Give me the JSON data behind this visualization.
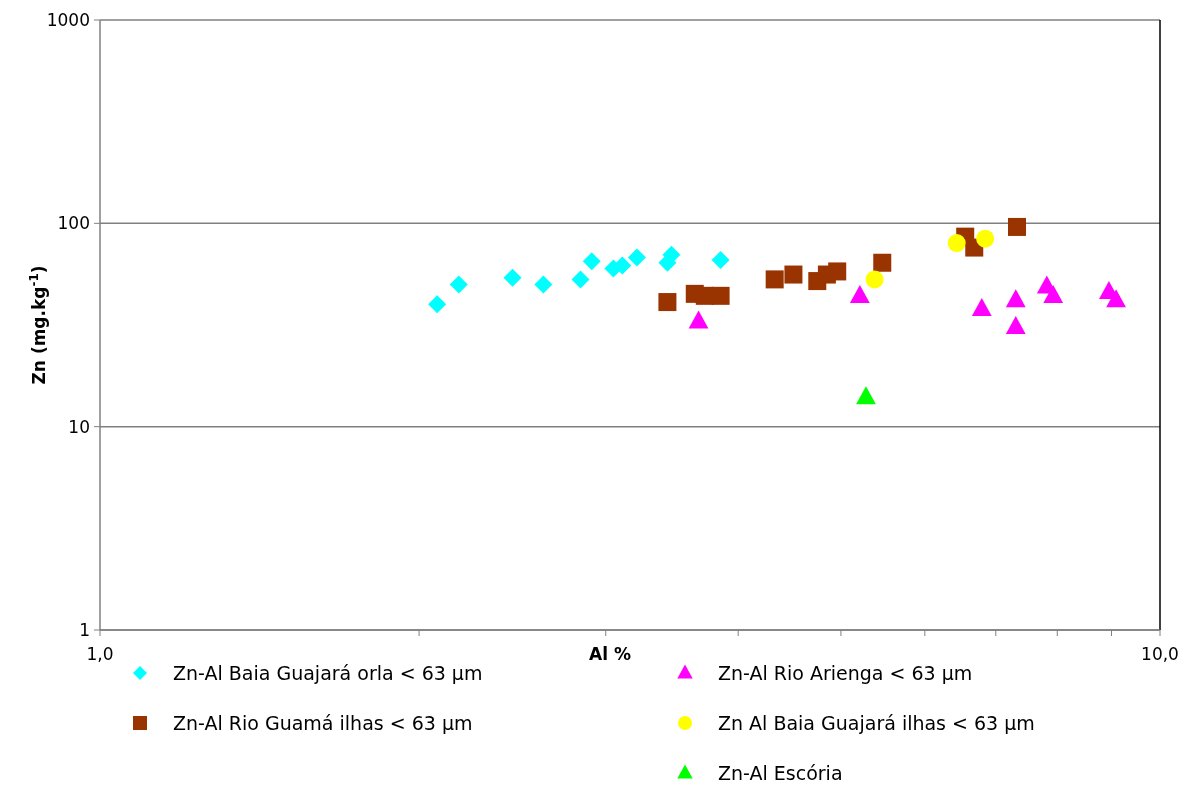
{
  "chart_data": {
    "type": "scatter",
    "xlabel": "Al %",
    "ylabel": "Zn (mg.kg$^{-1}$)",
    "log": "xy",
    "grid": "y",
    "legend": "bottom",
    "xlim": [
      1,
      10
    ],
    "xticks": [
      {
        "value": 1,
        "label": "1,0"
      },
      {
        "value": 2,
        "label": null
      },
      {
        "value": 3,
        "label": null
      },
      {
        "value": 4,
        "label": null
      },
      {
        "value": 5,
        "label": null
      },
      {
        "value": 6,
        "label": null
      },
      {
        "value": 7,
        "label": null
      },
      {
        "value": 8,
        "label": null
      },
      {
        "value": 9,
        "label": null
      },
      {
        "value": 10,
        "label": "10,0"
      }
    ],
    "ylim": [
      1,
      1000
    ],
    "yticks": [
      1,
      10,
      100,
      1000
    ],
    "series": [
      {
        "name": "Zn-Al Baia Guajará orla < 63 µm",
        "color": "#00ffff",
        "marker": "diamond",
        "x": [
          2.08,
          2.18,
          2.45,
          2.62,
          2.84,
          2.91,
          3.05,
          3.11,
          3.21,
          3.43,
          3.46,
          3.85
        ],
        "values": [
          40,
          50,
          54,
          50,
          53,
          65,
          60,
          62,
          68,
          64,
          70,
          66
        ]
      },
      {
        "name": "Zn-Al Rio Guamá ilhas < 63 µm",
        "color": "#993300",
        "marker": "square",
        "x": [
          3.43,
          3.64,
          3.72,
          3.85,
          4.33,
          4.51,
          4.75,
          4.85,
          4.96,
          5.47,
          6.55,
          6.68,
          7.33
        ],
        "values": [
          41,
          45,
          44,
          44,
          53,
          56,
          52,
          56,
          58,
          64,
          86,
          76,
          96
        ]
      },
      {
        "name": "Zn-Al Rio Arienga < 63 µm",
        "color": "#ff00ff",
        "marker": "triangle",
        "x": [
          3.67,
          5.21,
          6.79,
          7.31,
          7.31,
          7.82,
          7.93,
          8.95,
          9.09
        ],
        "values": [
          33,
          44,
          38,
          42,
          31,
          49,
          44,
          46,
          42
        ]
      },
      {
        "name": "Zn Al Baia Guajará ilhas < 63 µm",
        "color": "#ffff00",
        "marker": "circle",
        "x": [
          5.38,
          6.43,
          6.84
        ],
        "values": [
          53,
          80,
          84
        ]
      },
      {
        "name": "Zn-Al Escória",
        "color": "#00ff00",
        "marker": "triangle",
        "x": [
          5.28
        ],
        "values": [
          14
        ]
      }
    ]
  }
}
